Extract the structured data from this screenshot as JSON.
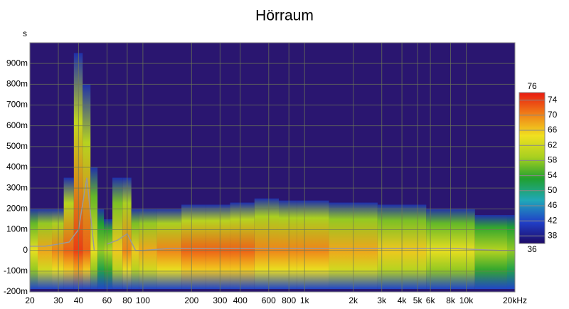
{
  "chart_data": {
    "type": "spectrogram",
    "title": "Hörraum",
    "y_label": "s",
    "x_scale": "log",
    "grid": true,
    "x": [
      20,
      25,
      30,
      35,
      40,
      45,
      50,
      55,
      60,
      70,
      80,
      90,
      100,
      150,
      200,
      300,
      400,
      600,
      800,
      1000,
      2000,
      4000,
      8000,
      16000,
      20000
    ],
    "decay": [
      0.2,
      0.2,
      0.2,
      0.35,
      0.95,
      0.8,
      0.4,
      0.2,
      0.15,
      0.35,
      0.35,
      0.2,
      0.2,
      0.2,
      0.22,
      0.22,
      0.23,
      0.25,
      0.24,
      0.24,
      0.23,
      0.22,
      0.2,
      0.17,
      0.17
    ],
    "values": [
      64,
      68,
      70,
      72,
      74,
      72,
      64,
      58,
      60,
      66,
      70,
      66,
      68,
      70,
      72,
      72,
      72,
      70,
      70,
      70,
      68,
      66,
      64,
      60,
      58
    ],
    "delay": [
      0.02,
      0.02,
      0.03,
      0.04,
      0.1,
      0.35,
      0.0,
      null,
      0.03,
      0.05,
      0.08,
      0.0,
      0.0,
      0.01,
      0.01,
      0.01,
      0.01,
      0.01,
      0.01,
      0.01,
      0.01,
      0.01,
      0.01,
      0.0,
      0.0
    ],
    "line_color": "#9a9a9a",
    "background": "#2a1670",
    "colormap": [
      "#1e0a66",
      "#2040c8",
      "#20a8b8",
      "#20a030",
      "#a8d020",
      "#f0e020",
      "#f08018",
      "#e81a10"
    ],
    "xlim": [
      20,
      20000
    ],
    "xticks": [
      20,
      30,
      40,
      60,
      80,
      100,
      200,
      300,
      400,
      600,
      800,
      {
        "value": 1000,
        "label": "1k"
      },
      {
        "value": 2000,
        "label": "2k"
      },
      {
        "value": 3000,
        "label": "3k"
      },
      {
        "value": 4000,
        "label": "4k"
      },
      {
        "value": 5000,
        "label": "5k"
      },
      {
        "value": 6000,
        "label": "6k"
      },
      {
        "value": 8000,
        "label": "8k"
      },
      {
        "value": 10000,
        "label": "10k"
      },
      {
        "value": 20000,
        "label": "20kHz"
      }
    ],
    "ylim": [
      -0.2,
      1.0
    ],
    "yticks": [
      {
        "value": -0.2,
        "label": "-200m"
      },
      {
        "value": -0.1,
        "label": "-100m"
      },
      0,
      {
        "value": 0.1,
        "label": "100m"
      },
      {
        "value": 0.2,
        "label": "200m"
      },
      {
        "value": 0.3,
        "label": "300m"
      },
      {
        "value": 0.4,
        "label": "400m"
      },
      {
        "value": 0.5,
        "label": "500m"
      },
      {
        "value": 0.6,
        "label": "600m"
      },
      {
        "value": 0.7,
        "label": "700m"
      },
      {
        "value": 0.8,
        "label": "800m"
      },
      {
        "value": 0.9,
        "label": "900m"
      }
    ],
    "zlim": [
      36,
      76
    ],
    "zticks": [
      38,
      42,
      46,
      50,
      54,
      58,
      62,
      66,
      70,
      74
    ]
  }
}
